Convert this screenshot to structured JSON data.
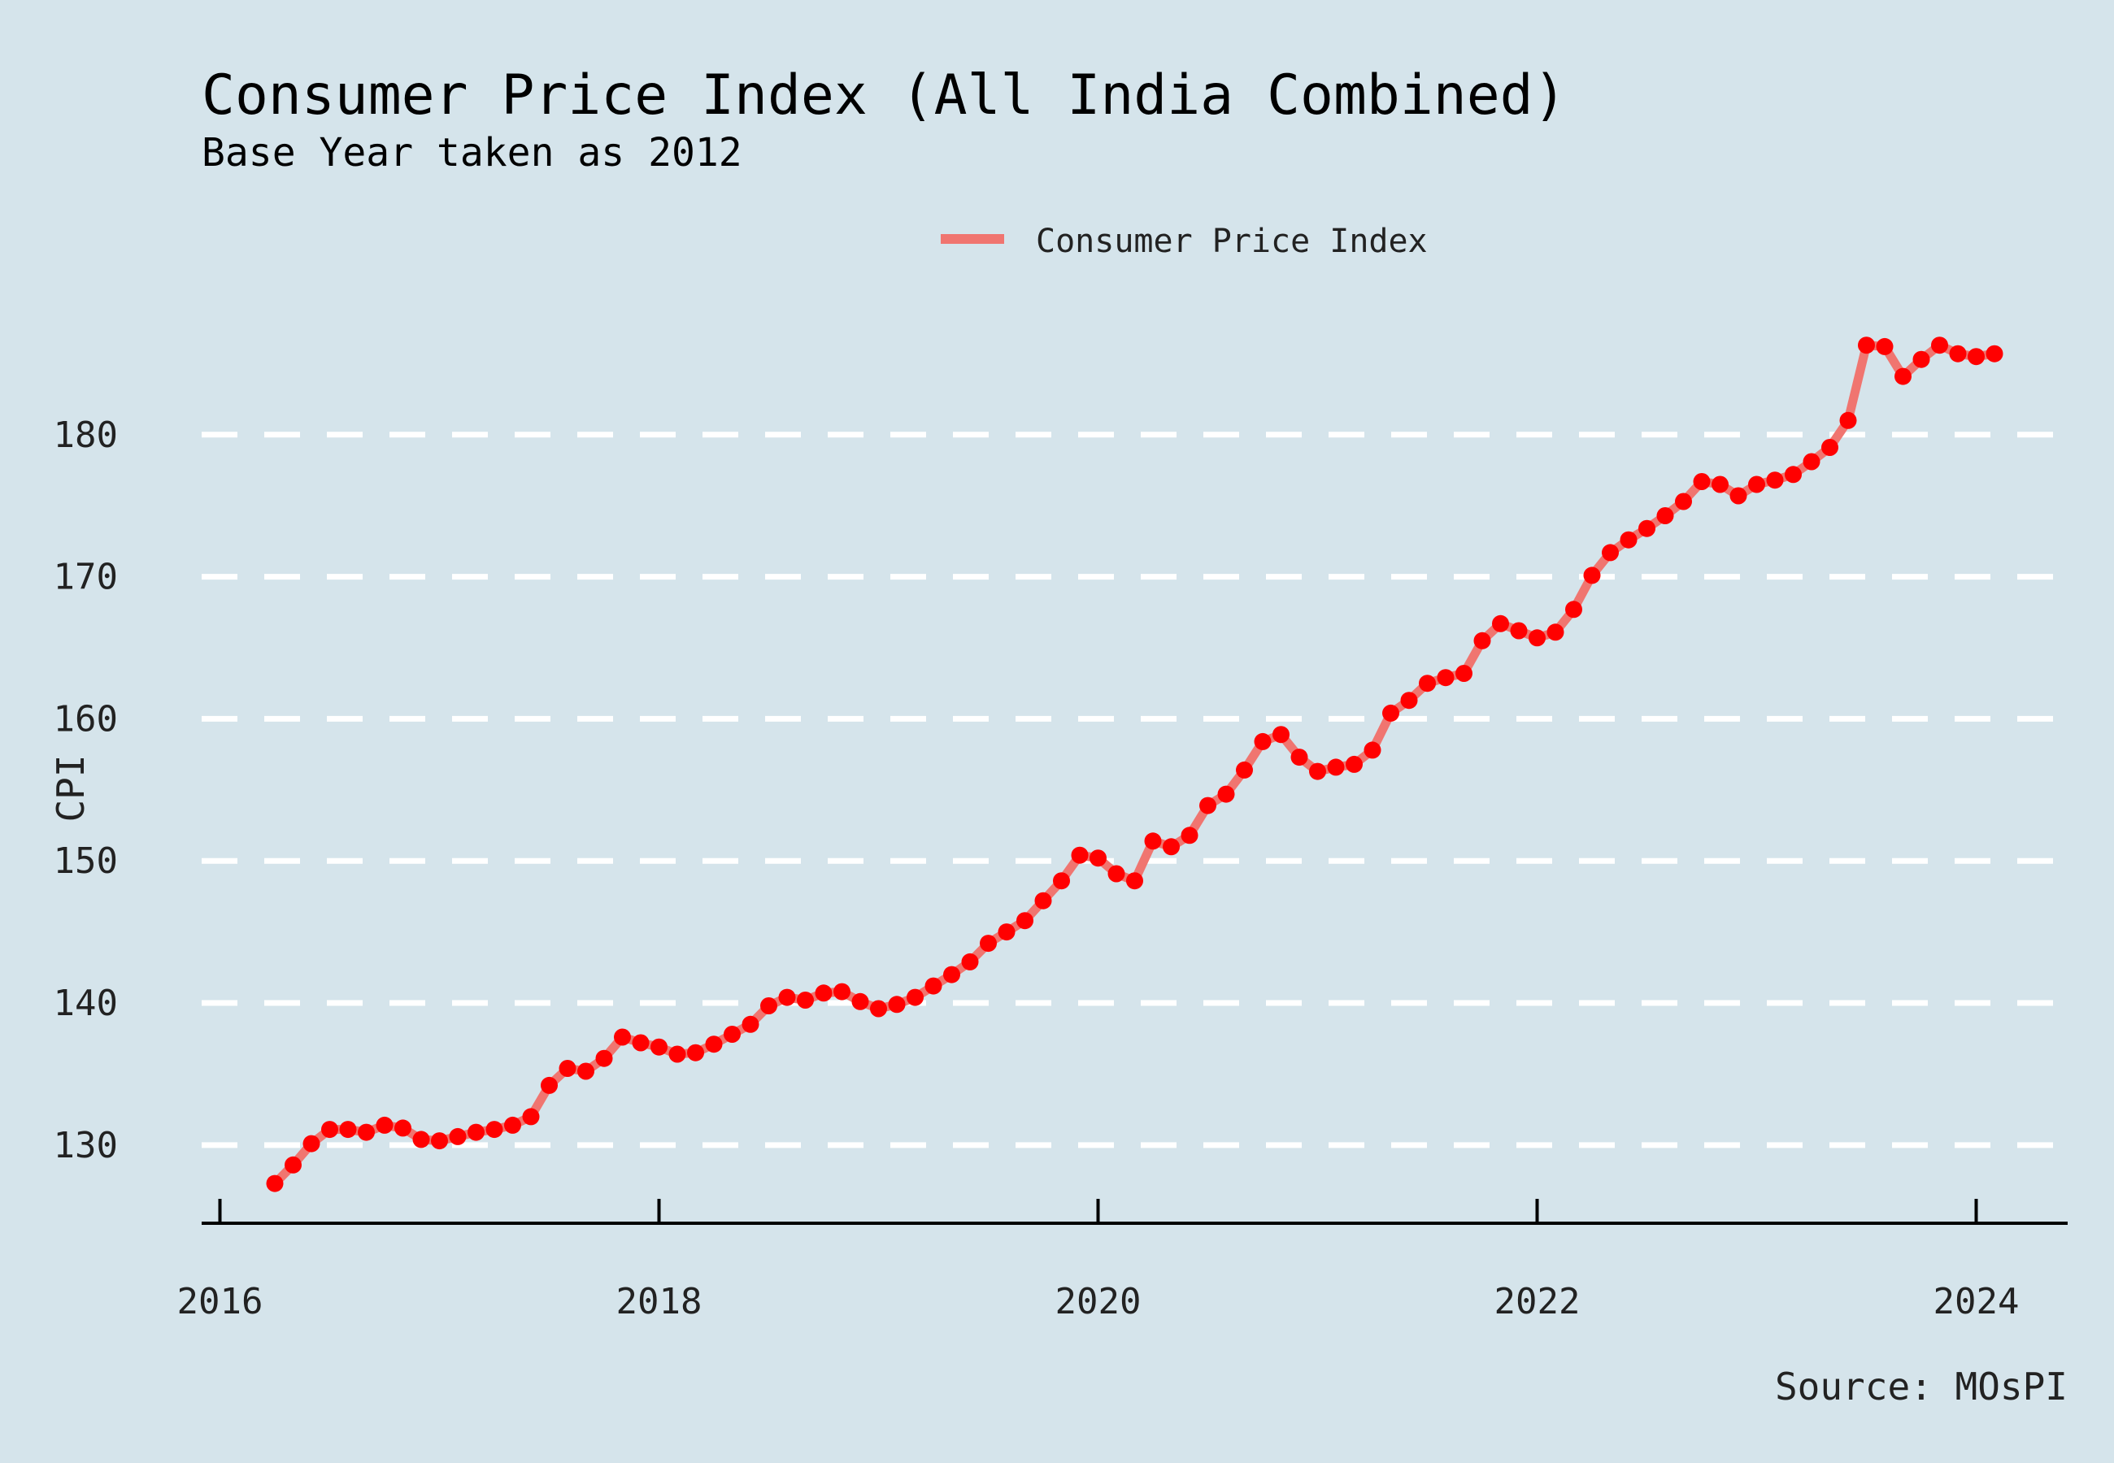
{
  "chart_data": {
    "type": "line",
    "title": "Consumer Price Index (All India Combined)",
    "subtitle": "Base Year taken as 2012",
    "ylabel": "CPI",
    "xlabel": "",
    "caption": "Source: MOsPI",
    "legend": {
      "position": "top",
      "entries": [
        "Consumer Price Index"
      ]
    },
    "grid": true,
    "line_color": "#f07570",
    "point_color": "#ff0000",
    "background_color": "#d5e4eb",
    "ylim": [
      124.5,
      190
    ],
    "xlim": [
      "2015-12",
      "2024-06"
    ],
    "y_ticks": [
      130,
      140,
      150,
      160,
      170,
      180
    ],
    "x_ticks": [
      "2016",
      "2018",
      "2020",
      "2022",
      "2024"
    ],
    "series": [
      {
        "name": "Consumer Price Index",
        "x": [
          "2016-04",
          "2016-05",
          "2016-06",
          "2016-07",
          "2016-08",
          "2016-09",
          "2016-10",
          "2016-11",
          "2016-12",
          "2017-01",
          "2017-02",
          "2017-03",
          "2017-04",
          "2017-05",
          "2017-06",
          "2017-07",
          "2017-08",
          "2017-09",
          "2017-10",
          "2017-11",
          "2017-12",
          "2018-01",
          "2018-02",
          "2018-03",
          "2018-04",
          "2018-05",
          "2018-06",
          "2018-07",
          "2018-08",
          "2018-09",
          "2018-10",
          "2018-11",
          "2018-12",
          "2019-01",
          "2019-02",
          "2019-03",
          "2019-04",
          "2019-05",
          "2019-06",
          "2019-07",
          "2019-08",
          "2019-09",
          "2019-10",
          "2019-11",
          "2019-12",
          "2020-01",
          "2020-02",
          "2020-03",
          "2020-04",
          "2020-05",
          "2020-06",
          "2020-07",
          "2020-08",
          "2020-09",
          "2020-10",
          "2020-11",
          "2020-12",
          "2021-01",
          "2021-02",
          "2021-03",
          "2021-04",
          "2021-05",
          "2021-06",
          "2021-07",
          "2021-08",
          "2021-09",
          "2021-10",
          "2021-11",
          "2021-12",
          "2022-01",
          "2022-02",
          "2022-03",
          "2022-04",
          "2022-05",
          "2022-06",
          "2022-07",
          "2022-08",
          "2022-09",
          "2022-10",
          "2022-11",
          "2022-12",
          "2023-01",
          "2023-02",
          "2023-03",
          "2023-04",
          "2023-05",
          "2023-06",
          "2023-07",
          "2023-08",
          "2023-09",
          "2023-10",
          "2023-11",
          "2023-12",
          "2024-01",
          "2024-02"
        ],
        "values": [
          127.3,
          128.6,
          130.1,
          131.1,
          131.1,
          130.9,
          131.4,
          131.2,
          130.4,
          130.3,
          130.6,
          130.9,
          131.1,
          131.4,
          132.0,
          134.2,
          135.4,
          135.2,
          136.1,
          137.6,
          137.2,
          136.9,
          136.4,
          136.5,
          137.1,
          137.8,
          138.5,
          139.8,
          140.4,
          140.2,
          140.7,
          140.8,
          140.1,
          139.6,
          139.9,
          140.4,
          141.2,
          142.0,
          142.9,
          144.2,
          145.0,
          145.8,
          147.2,
          148.6,
          150.4,
          150.2,
          149.1,
          148.6,
          151.4,
          151.0,
          151.8,
          153.9,
          154.7,
          156.4,
          158.4,
          158.9,
          157.3,
          156.3,
          156.6,
          156.8,
          157.8,
          160.4,
          161.3,
          162.5,
          162.9,
          163.2,
          165.5,
          166.7,
          166.2,
          165.7,
          166.1,
          167.7,
          170.1,
          171.7,
          172.6,
          173.4,
          174.3,
          175.3,
          176.7,
          176.5,
          175.7,
          176.5,
          176.8,
          177.2,
          178.1,
          179.1,
          181.0,
          186.3,
          186.2,
          184.1,
          185.3,
          186.3,
          185.7,
          185.5,
          185.7
        ]
      }
    ]
  }
}
